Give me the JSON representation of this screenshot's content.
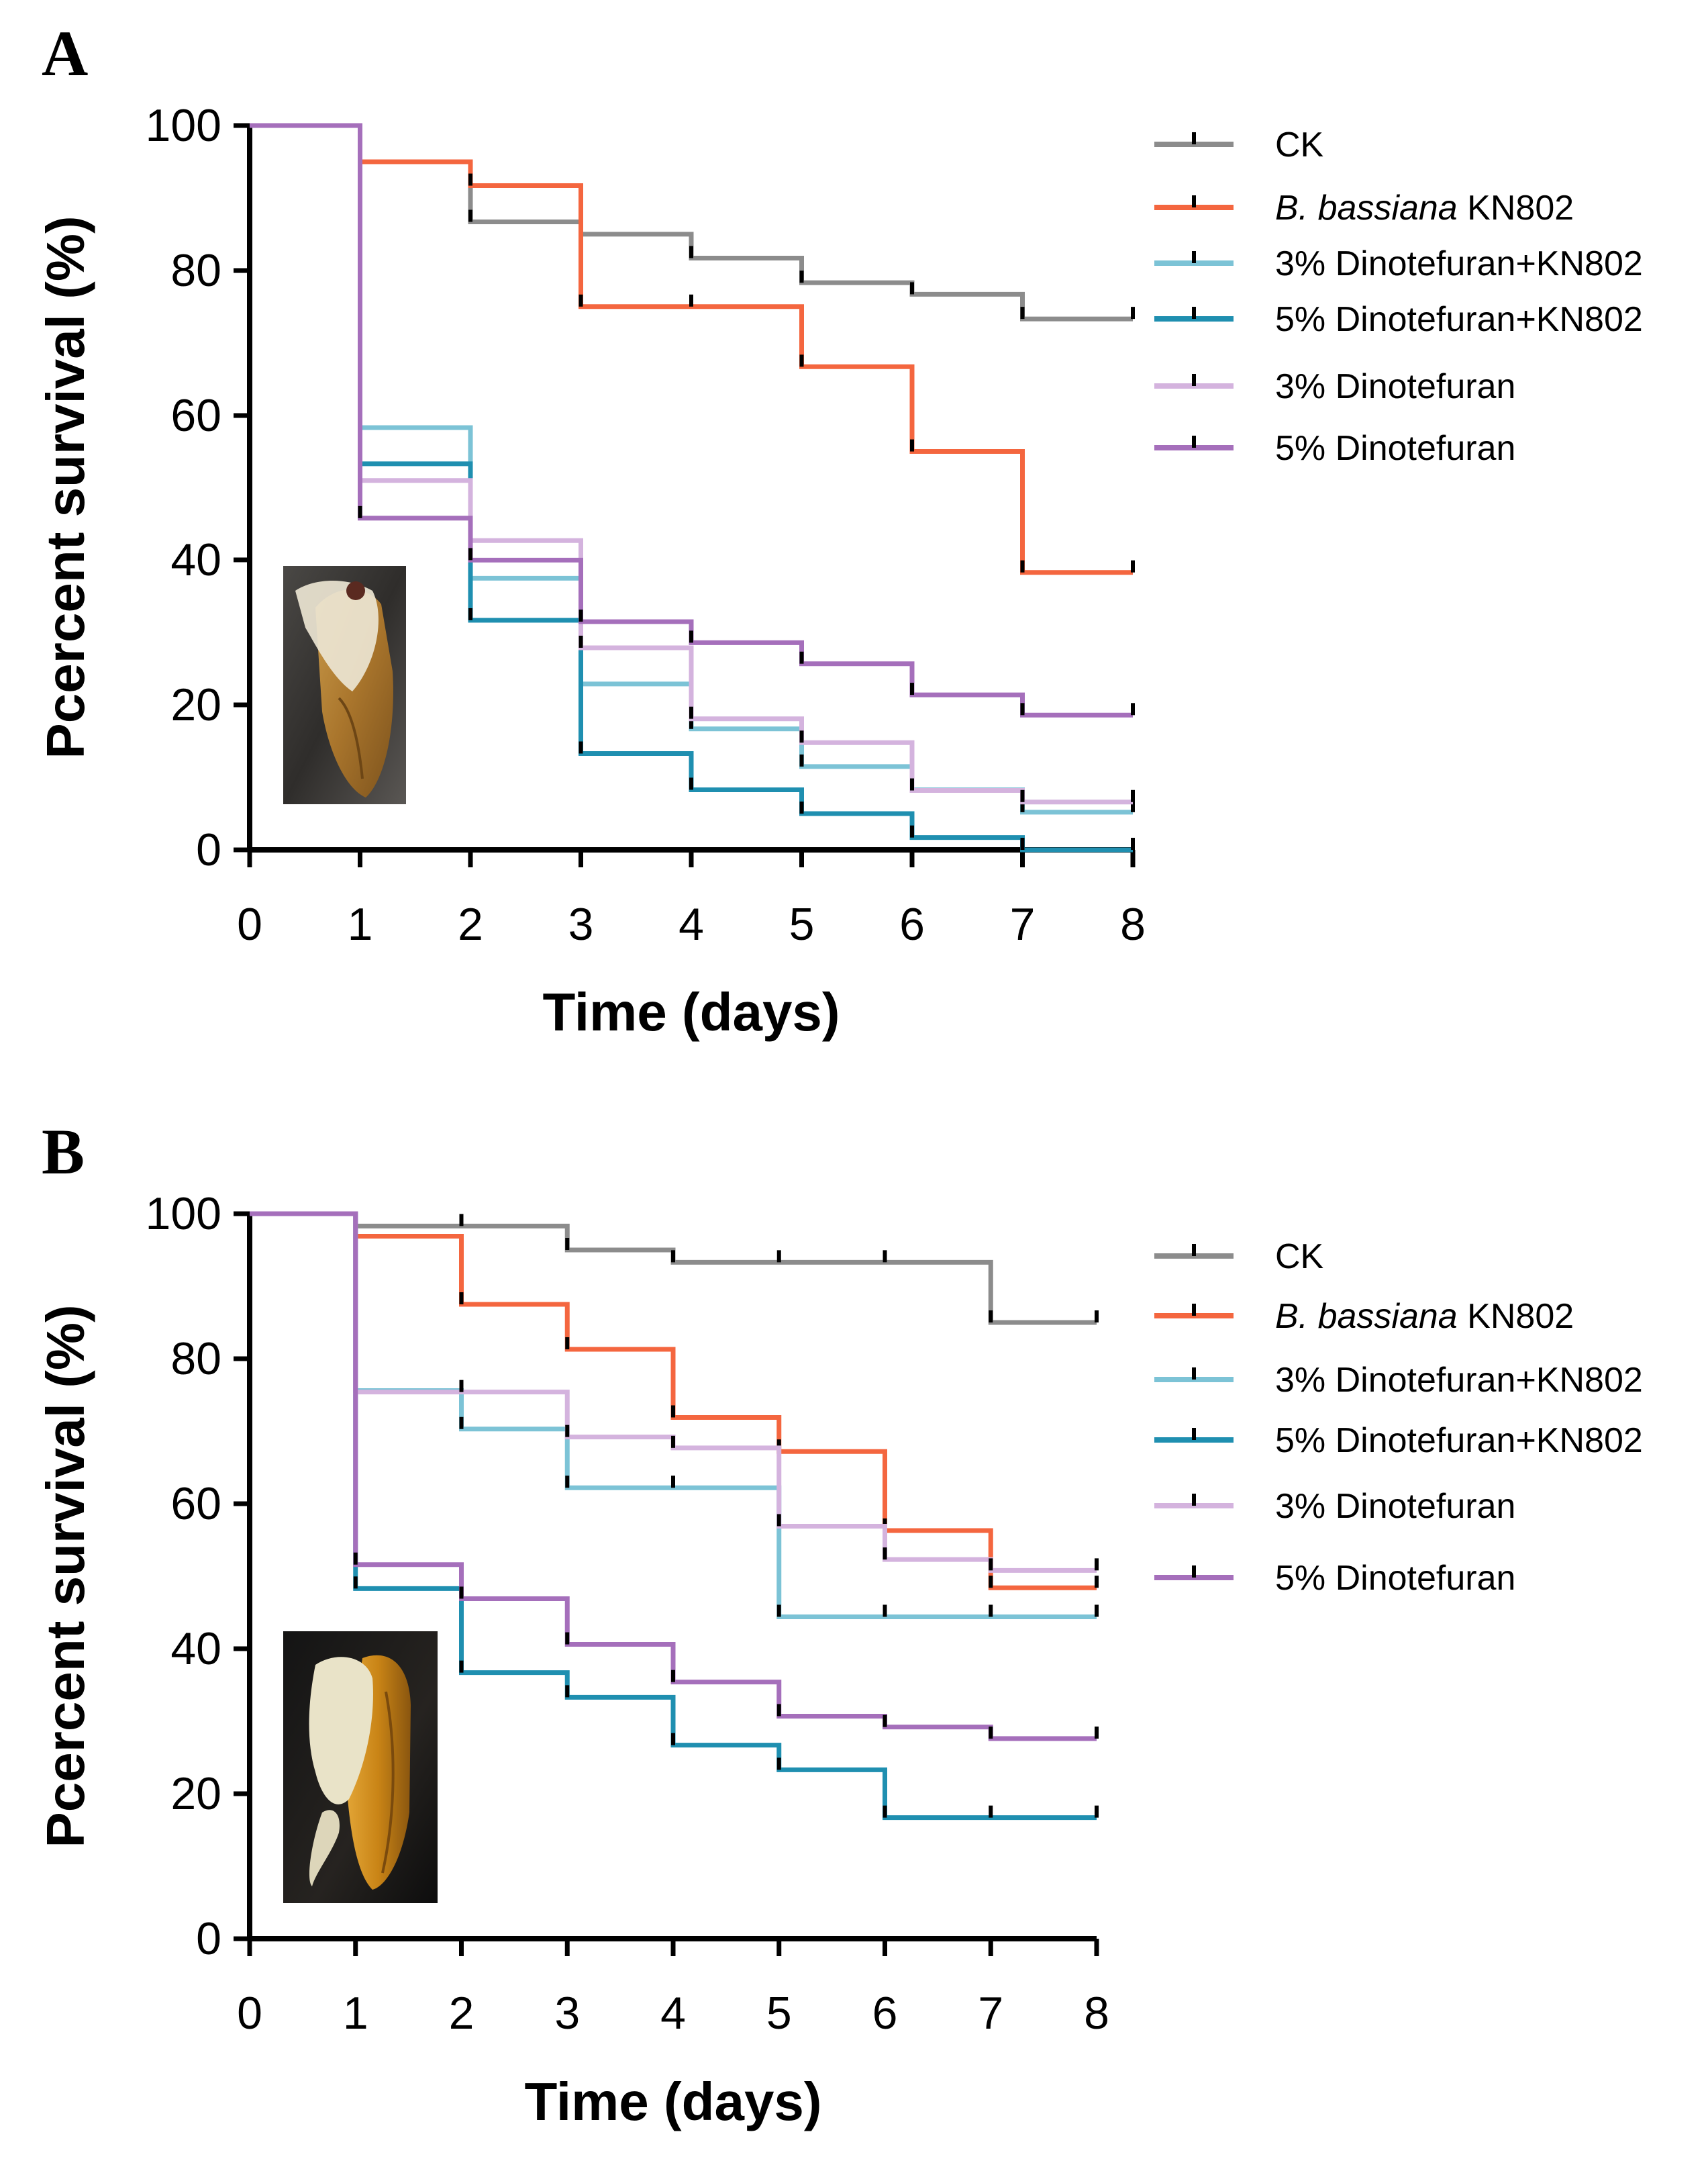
{
  "chart_data": [
    {
      "type": "line",
      "subtype": "step-survival",
      "panel_label": "A",
      "title": "",
      "xlabel": "Time (days)",
      "ylabel": "Pcercent survival (%)",
      "xlim": [
        0,
        8
      ],
      "ylim": [
        0,
        100
      ],
      "x_ticks": [
        0,
        1,
        2,
        3,
        4,
        5,
        6,
        7,
        8
      ],
      "y_ticks": [
        0,
        20,
        40,
        60,
        80,
        100
      ],
      "legend_position": "top-right",
      "inset_image": "larva with white fungal growth",
      "series": [
        {
          "name": "CK",
          "color": "#8c8c8c",
          "x": [
            0,
            1,
            2,
            3,
            4,
            5,
            6,
            7,
            8
          ],
          "y": [
            100,
            95,
            86.7,
            85,
            81.7,
            78.3,
            76.7,
            73.3,
            73.3
          ]
        },
        {
          "name": "B. bassiana KN802",
          "name_italic": "B. bassiana",
          "name_rest": " KN802",
          "color": "#f4663f",
          "x": [
            0,
            1,
            2,
            3,
            4,
            5,
            6,
            7,
            8
          ],
          "y": [
            100,
            95,
            91.7,
            75,
            75,
            66.7,
            55,
            38.3,
            38.3
          ]
        },
        {
          "name": "3% Dinotefuran+KN802",
          "color": "#7cc3d6",
          "x": [
            0,
            1,
            2,
            3,
            4,
            5,
            6,
            7,
            8
          ],
          "y": [
            100,
            58.3,
            37.5,
            22.9,
            16.7,
            11.5,
            8.3,
            5.2,
            5.2
          ]
        },
        {
          "name": "5% Dinotefuran+KN802",
          "color": "#1f8fb0",
          "x": [
            0,
            1,
            2,
            3,
            4,
            5,
            6,
            7,
            8
          ],
          "y": [
            100,
            53.3,
            31.7,
            13.3,
            8.3,
            5,
            1.7,
            0,
            0
          ]
        },
        {
          "name": "3% Dinotefuran",
          "color": "#d4b3de",
          "x": [
            0,
            1,
            2,
            3,
            4,
            5,
            6,
            7,
            8
          ],
          "y": [
            100,
            51,
            42.7,
            27.9,
            18.1,
            14.8,
            8.2,
            6.6,
            6.6
          ]
        },
        {
          "name": "5% Dinotefuran",
          "color": "#a56fbb",
          "x": [
            0,
            1,
            2,
            3,
            4,
            5,
            6,
            7,
            8
          ],
          "y": [
            100,
            45.8,
            40,
            31.5,
            28.6,
            25.7,
            21.4,
            18.6,
            18.6
          ]
        }
      ]
    },
    {
      "type": "line",
      "subtype": "step-survival",
      "panel_label": "B",
      "title": "",
      "xlabel": "Time (days)",
      "ylabel": "Pcercent survival (%)",
      "xlim": [
        0,
        8
      ],
      "ylim": [
        0,
        100
      ],
      "x_ticks": [
        0,
        1,
        2,
        3,
        4,
        5,
        6,
        7,
        8
      ],
      "y_ticks": [
        0,
        20,
        40,
        60,
        80,
        100
      ],
      "legend_position": "top-right",
      "inset_image": "larva with white fungal growth",
      "series": [
        {
          "name": "CK",
          "color": "#8c8c8c",
          "x": [
            0,
            1,
            2,
            3,
            4,
            5,
            6,
            7,
            8
          ],
          "y": [
            100,
            98.3,
            98.3,
            95,
            93.3,
            93.3,
            93.3,
            85,
            85
          ]
        },
        {
          "name": "B. bassiana KN802",
          "name_italic": "B. bassiana",
          "name_rest": " KN802",
          "color": "#f4663f",
          "x": [
            0,
            1,
            2,
            3,
            4,
            5,
            6,
            7,
            8
          ],
          "y": [
            100,
            96.9,
            87.5,
            81.3,
            71.9,
            67.2,
            56.3,
            48.4,
            48.4
          ]
        },
        {
          "name": "3% Dinotefuran+KN802",
          "color": "#7cc3d6",
          "x": [
            0,
            1,
            2,
            3,
            4,
            5,
            6,
            7,
            8
          ],
          "y": [
            100,
            75.6,
            70.3,
            62.2,
            62.2,
            44.4,
            44.4,
            44.4,
            44.4
          ]
        },
        {
          "name": "5% Dinotefuran+KN802",
          "color": "#1f8fb0",
          "x": [
            0,
            1,
            2,
            3,
            4,
            5,
            6,
            7,
            8
          ],
          "y": [
            100,
            48.3,
            36.7,
            33.3,
            26.7,
            23.3,
            16.7,
            16.7,
            16.7
          ]
        },
        {
          "name": "3% Dinotefuran",
          "color": "#d4b3de",
          "x": [
            0,
            1,
            2,
            3,
            4,
            5,
            6,
            7,
            8
          ],
          "y": [
            100,
            75.4,
            75.4,
            69.2,
            67.7,
            56.9,
            52.3,
            50.8,
            50.8
          ]
        },
        {
          "name": "5% Dinotefuran",
          "color": "#a56fbb",
          "x": [
            0,
            1,
            2,
            3,
            4,
            5,
            6,
            7,
            8
          ],
          "y": [
            100,
            51.6,
            46.9,
            40.6,
            35.4,
            30.7,
            29.2,
            27.6,
            27.6
          ]
        }
      ]
    }
  ]
}
